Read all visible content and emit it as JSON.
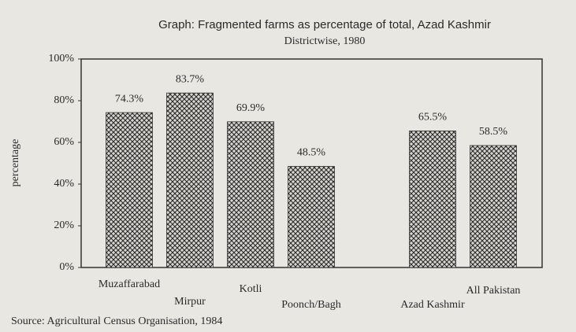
{
  "chart_data": {
    "type": "bar",
    "title": "Graph: Fragmented farms as percentage of total, Azad Kashmir",
    "subtitle": "Districtwise, 1980",
    "y_label": "percentage",
    "source": "Source: Agricultural Census Organisation, 1984",
    "categories": [
      "Muzaffarabad",
      "Mirpur",
      "Kotli",
      "Poonch/Bagh",
      null,
      "Azad Kashmir",
      "All Pakistan"
    ],
    "values": [
      74.3,
      83.7,
      69.9,
      48.5,
      null,
      65.5,
      58.5
    ],
    "value_labels": [
      "74.3%",
      "83.7%",
      "69.9%",
      "48.5%",
      null,
      "65.5%",
      "58.5%"
    ],
    "ylim": [
      0,
      100
    ],
    "yticks": [
      {
        "value": 0,
        "label": "0%"
      },
      {
        "value": 20,
        "label": "20%"
      },
      {
        "value": 40,
        "label": "40%"
      },
      {
        "value": 60,
        "label": "60%"
      },
      {
        "value": 80,
        "label": "80%"
      },
      {
        "value": 100,
        "label": "100%"
      }
    ]
  }
}
